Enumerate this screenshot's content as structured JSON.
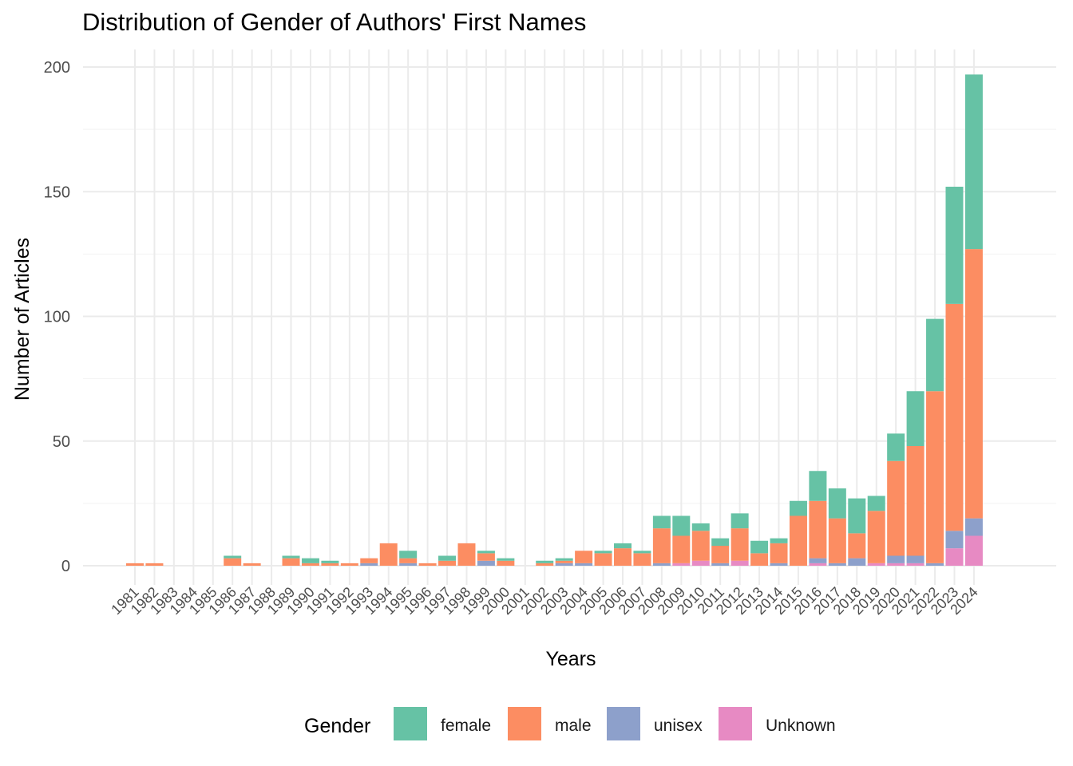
{
  "chart_data": {
    "type": "bar",
    "stacked": true,
    "title": "Distribution of Gender of Authors' First Names",
    "xlabel": "Years",
    "ylabel": "Number of Articles",
    "ylim": [
      -8,
      203
    ],
    "yticks": [
      0,
      50,
      100,
      150,
      200
    ],
    "grid": true,
    "legend_position": "bottom",
    "legend_title": "Gender",
    "categories": [
      "1981",
      "1982",
      "1983",
      "1984",
      "1985",
      "1986",
      "1987",
      "1988",
      "1989",
      "1990",
      "1991",
      "1992",
      "1993",
      "1994",
      "1995",
      "1996",
      "1997",
      "1998",
      "1999",
      "2000",
      "2001",
      "2002",
      "2003",
      "2004",
      "2005",
      "2006",
      "2007",
      "2008",
      "2009",
      "2010",
      "2011",
      "2012",
      "2013",
      "2014",
      "2015",
      "2016",
      "2017",
      "2018",
      "2019",
      "2020",
      "2021",
      "2022",
      "2023",
      "2024"
    ],
    "series": [
      {
        "name": "Unknown",
        "color": "#e78ac3",
        "values": [
          0,
          0,
          0,
          0,
          0,
          0,
          0,
          0,
          0,
          0,
          0,
          0,
          0,
          0,
          0,
          0,
          0,
          0,
          0,
          0,
          0,
          0,
          0,
          0,
          0,
          0,
          0,
          0,
          1,
          2,
          0,
          2,
          0,
          0,
          0,
          1,
          0,
          0,
          1,
          1,
          1,
          0,
          7,
          12
        ]
      },
      {
        "name": "unisex",
        "color": "#8da0cb",
        "values": [
          0,
          0,
          0,
          0,
          0,
          0,
          0,
          0,
          0,
          0,
          0,
          0,
          1,
          0,
          1,
          0,
          0,
          0,
          2,
          0,
          0,
          0,
          1,
          1,
          0,
          0,
          0,
          1,
          0,
          0,
          1,
          0,
          0,
          1,
          0,
          2,
          1,
          3,
          0,
          3,
          3,
          1,
          7,
          7
        ]
      },
      {
        "name": "male",
        "color": "#fc8d62",
        "values": [
          1,
          1,
          0,
          0,
          0,
          3,
          1,
          0,
          3,
          1,
          1,
          1,
          2,
          9,
          2,
          1,
          2,
          9,
          3,
          2,
          0,
          1,
          1,
          5,
          5,
          7,
          5,
          14,
          11,
          12,
          7,
          13,
          5,
          8,
          20,
          23,
          18,
          10,
          21,
          38,
          44,
          69,
          91,
          108
        ]
      },
      {
        "name": "female",
        "color": "#66c2a5",
        "values": [
          0,
          0,
          0,
          0,
          0,
          1,
          0,
          0,
          1,
          2,
          1,
          0,
          0,
          0,
          3,
          0,
          2,
          0,
          1,
          1,
          0,
          1,
          1,
          0,
          1,
          2,
          1,
          5,
          8,
          3,
          3,
          6,
          5,
          2,
          6,
          12,
          12,
          14,
          6,
          11,
          22,
          29,
          47,
          70
        ]
      }
    ],
    "legend_order": [
      "female",
      "male",
      "unisex",
      "Unknown"
    ]
  }
}
